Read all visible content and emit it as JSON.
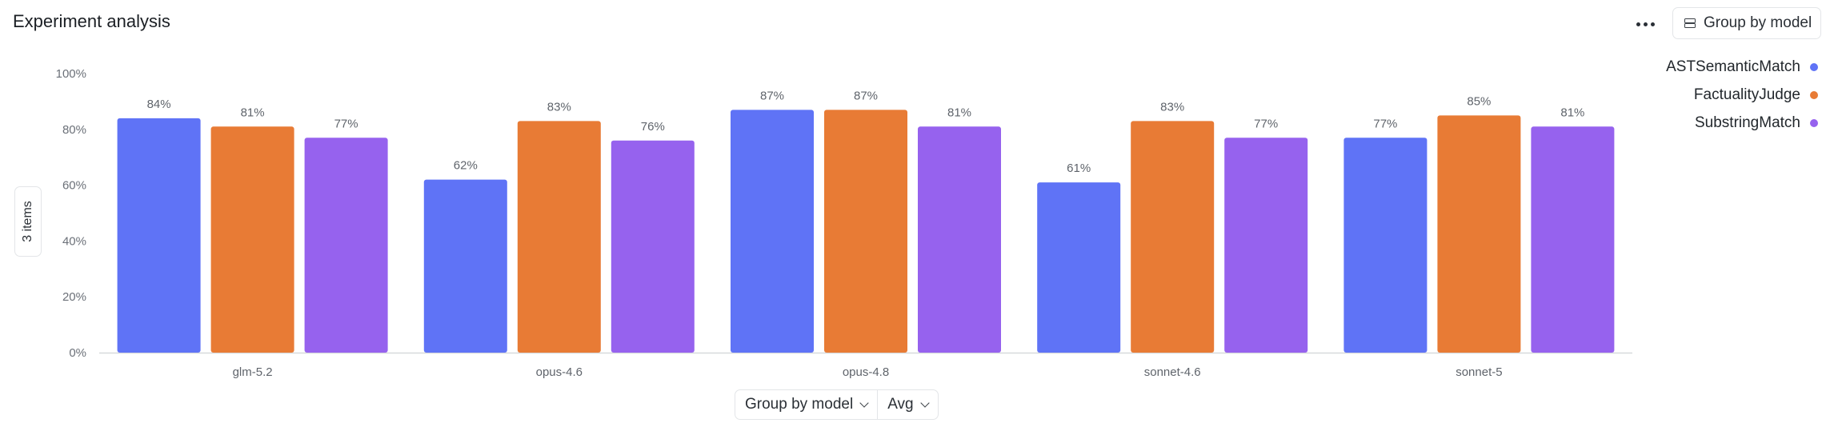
{
  "header": {
    "title": "Experiment analysis",
    "more_icon": "more-horizontal-icon",
    "group_button_label": "Group by model",
    "group_button_icon": "stack-icon"
  },
  "side_tab": {
    "label": "3 items"
  },
  "footer": {
    "group_label": "Group by model",
    "agg_label": "Avg"
  },
  "chart_data": {
    "type": "bar",
    "categories": [
      "glm-5.2",
      "opus-4.6",
      "opus-4.8",
      "sonnet-4.6",
      "sonnet-5"
    ],
    "series": [
      {
        "name": "ASTSemanticMatch",
        "color": "#5f73f6",
        "values": [
          84,
          62,
          87,
          61,
          77
        ]
      },
      {
        "name": "FactualityJudge",
        "color": "#e87b35",
        "values": [
          81,
          83,
          87,
          83,
          85
        ]
      },
      {
        "name": "SubstringMatch",
        "color": "#9662ee",
        "values": [
          77,
          76,
          81,
          77,
          81
        ]
      }
    ],
    "data_labels": [
      [
        "84%",
        "62%",
        "87%",
        "61%",
        "77%"
      ],
      [
        "81%",
        "83%",
        "87%",
        "83%",
        "85%"
      ],
      [
        "77%",
        "76%",
        "81%",
        "77%",
        "81%"
      ]
    ],
    "yticks": [
      "0%",
      "20%",
      "40%",
      "60%",
      "80%",
      "100%"
    ],
    "ylim": [
      0,
      100
    ],
    "legend_position": "top-right",
    "grid": false
  }
}
